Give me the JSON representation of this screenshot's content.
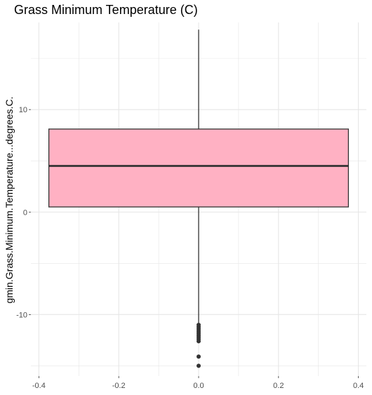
{
  "chart_data": {
    "type": "boxplot",
    "title": "Grass Minimum Temperature (C)",
    "xlabel": "",
    "ylabel": "gmin.Grass.Minimum.Temperature...degrees.C.",
    "xlim": [
      -0.42,
      0.42
    ],
    "ylim": [
      -16,
      18.5
    ],
    "x_ticks": [
      -0.4,
      -0.2,
      0.0,
      0.2,
      0.4
    ],
    "x_tick_labels": [
      "-0.4",
      "-0.2",
      "0.0",
      "0.2",
      "0.4"
    ],
    "y_ticks": [
      -10,
      0,
      10
    ],
    "y_tick_labels": [
      "-10",
      "0",
      "10"
    ],
    "grid": true,
    "box": {
      "x_left": -0.375,
      "x_right": 0.375,
      "x_center": 0.0,
      "q1": 0.5,
      "median": 4.5,
      "q3": 8.1,
      "whisker_low": -10.8,
      "whisker_high": 17.8,
      "outliers": [
        -11.0,
        -11.2,
        -11.4,
        -11.6,
        -11.8,
        -12.0,
        -12.2,
        -12.4,
        -12.6,
        -14.1,
        -15.0
      ]
    },
    "colors": {
      "box_fill": "#FFB1C3",
      "box_edge": "#333333",
      "grid": "#E6E6E6"
    }
  }
}
